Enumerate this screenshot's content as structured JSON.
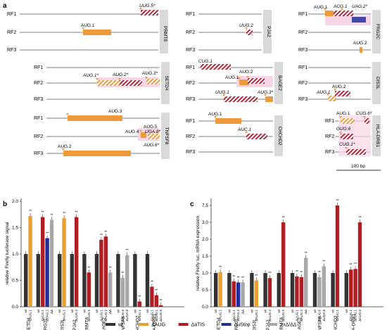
{
  "colors": {
    "wt": "#333333",
    "dAUG": "#e8a02e",
    "daTIS": "#b01e24",
    "duStop": "#1f2f9e",
    "dd": "#a8a8a8",
    "orf_orange": "#ee9a3a",
    "orf_red": "#b0283a",
    "hl_pink": "#f6d6e6",
    "gene_box": "#d9d9d9"
  },
  "panel_a": {
    "label": "a",
    "scale_bar": "100 bp",
    "genes": [
      {
        "name": "PRMT8",
        "frames": [
          "RF1",
          "RF2",
          "RF3"
        ],
        "tis": [
          "UUG.5*",
          "AUG.1"
        ]
      },
      {
        "name": "PJA2",
        "frames": [
          "RF1",
          "RF2",
          "RF3"
        ],
        "tis": [
          "UUG.2"
        ]
      },
      {
        "name": "FRG2C",
        "frames": [
          "RF1",
          "RF2",
          "RF3"
        ],
        "tis": [
          "AUG.1",
          "ACG.1",
          "UAG.2*",
          "AUG.2"
        ]
      },
      {
        "name": "SETD4",
        "frames": [
          "RF1",
          "RF2",
          "RF3"
        ],
        "tis": [
          "AUG.1*",
          "AUG.2*",
          "AUG.3*"
        ]
      },
      {
        "name": "BAGE2",
        "frames": [
          "RF1",
          "RF2",
          "RF3"
        ],
        "tis": [
          "CUG.1",
          "AUG.2",
          "AUG.1",
          "UUG.1",
          "AUG.3*"
        ]
      },
      {
        "name": "DIS3L",
        "frames": [
          "RF1",
          "RF2",
          "RF3"
        ],
        "tis": [
          "AUG.2",
          "AUG.1"
        ]
      },
      {
        "name": "TNFSF8",
        "frames": [
          "RF1",
          "RF2",
          "RF3"
        ],
        "tis": [
          "AUG.3",
          "AUG.5",
          "AUG.4",
          "UGA.8*",
          "AUG.6*",
          "AUG.2"
        ]
      },
      {
        "name": "CHCHD2",
        "frames": [
          "RF1",
          "RF2",
          "RF3"
        ],
        "tis": [
          "AUG.1",
          "AUC.1"
        ]
      },
      {
        "name": "HLA-DRB1",
        "frames": [
          "RF1",
          "RF2",
          "RF3"
        ],
        "tis": [
          "AUG.1",
          "CUG.6*",
          "GUG.6",
          "CUG.1*"
        ]
      }
    ]
  },
  "panel_b": {
    "label": "b",
    "ylabel": "relative Firefly luciferase signal",
    "ticks": [
      "0.0",
      "0.5",
      "1.0",
      "1.5",
      "2.0"
    ],
    "stars": "**"
  },
  "panel_c": {
    "label": "c",
    "ylabel": "relative Firefly luc. mRNA expression",
    "ticks_low": [
      "0.0",
      "0.5",
      "1.0",
      "1.5",
      "2.0"
    ],
    "ticks_high": [
      "3.0",
      "7.5"
    ],
    "stars": "**"
  },
  "legend": [
    {
      "key": "wt",
      "label": "wt"
    },
    {
      "key": "dAUG",
      "label": "ΔAUG"
    },
    {
      "key": "daTIS",
      "label": "ΔaTIS"
    },
    {
      "key": "duStop",
      "label": "ΔuStop"
    },
    {
      "key": "dd",
      "label": "2xΔ/ΔΔ"
    }
  ],
  "chart_data": [
    {
      "type": "bar",
      "panel": "b",
      "ylabel": "relative Firefly luciferase signal",
      "ylim": [
        0,
        2.0
      ],
      "groups": [
        {
          "gene": "SETD4",
          "bars": [
            {
              "cond": "wt",
              "label": "wt",
              "value": 1.0
            },
            {
              "cond": "dAUG",
              "label": "ΔAUG.1",
              "value": 1.72
            }
          ]
        },
        {
          "gene": "FRG2C",
          "bars": [
            {
              "cond": "wt",
              "label": "wt",
              "value": 1.0
            },
            {
              "cond": "daTIS",
              "label": "ΔACG.1",
              "value": 1.7
            },
            {
              "cond": "duStop",
              "label": "ΔUAG.2",
              "value": 1.3
            },
            {
              "cond": "dd",
              "label": "ΔΔ",
              "value": 1.65
            }
          ]
        },
        {
          "gene": "DIS3L",
          "bars": [
            {
              "cond": "wt",
              "label": "wt",
              "value": 1.0
            },
            {
              "cond": "dAUG",
              "label": "ΔAUG.1",
              "value": 1.68
            }
          ]
        },
        {
          "gene": "PJA2",
          "bars": [
            {
              "cond": "wt",
              "label": "wt",
              "value": 1.0
            },
            {
              "cond": "daTIS",
              "label": "ΔUUG.2",
              "value": 1.7
            }
          ]
        },
        {
          "gene": "PRMT8",
          "bars": [
            {
              "cond": "wt",
              "label": "wt",
              "value": 1.0
            },
            {
              "cond": "daTIS",
              "label": "ΔUUG.5",
              "value": 0.65
            }
          ]
        },
        {
          "gene": "BAGE2",
          "bars": [
            {
              "cond": "wt",
              "label": "wt",
              "value": 1.0
            },
            {
              "cond": "daTIS",
              "label": "ΔUUG.1",
              "value": 1.27
            },
            {
              "cond": "daTIS",
              "label": "ΔAUG.2",
              "value": 1.33
            },
            {
              "cond": "dd",
              "label": "ΔΔ",
              "value": 0.65
            }
          ]
        },
        {
          "gene": "TNFSF8",
          "bars": [
            {
              "cond": "wt",
              "label": "wt",
              "value": 1.0
            },
            {
              "cond": "dd",
              "label": "ΔAUG.6",
              "value": 0.55
            },
            {
              "cond": "dd",
              "label": "ΔUGA.8",
              "value": 0.98
            }
          ]
        },
        {
          "gene": "CHCHD2",
          "bars": [
            {
              "cond": "wt",
              "label": "wt",
              "value": 1.0
            },
            {
              "cond": "daTIS",
              "label": "ΔAUC.1",
              "value": 0.1
            }
          ]
        },
        {
          "gene": "HLA-DRB1",
          "bars": [
            {
              "cond": "wt",
              "label": "wt",
              "value": 1.0
            },
            {
              "cond": "daTIS",
              "label": "ΔAUG.1",
              "value": 0.38
            },
            {
              "cond": "daTIS",
              "label": "ΔCUG.1",
              "value": 0.22
            },
            {
              "cond": "daTIS",
              "label": "ΔGUG.6",
              "value": 0.03
            }
          ]
        }
      ]
    },
    {
      "type": "bar",
      "panel": "c",
      "ylabel": "relative Firefly luc. mRNA expression",
      "ylim": [
        0,
        7.5
      ],
      "axis_break": [
        2.0,
        3.0
      ],
      "groups": [
        {
          "gene": "SETD4",
          "bars": [
            {
              "cond": "wt",
              "label": "wt",
              "value": 1.0
            },
            {
              "cond": "dAUG",
              "label": "ΔAUG.1",
              "value": 1.03
            }
          ]
        },
        {
          "gene": "FRG2C",
          "bars": [
            {
              "cond": "wt",
              "label": "wt",
              "value": 1.0
            },
            {
              "cond": "daTIS",
              "label": "ΔACG.1",
              "value": 0.75
            },
            {
              "cond": "duStop",
              "label": "ΔUAG.2",
              "value": 0.72
            },
            {
              "cond": "dd",
              "label": "ΔΔ",
              "value": 0.72
            }
          ]
        },
        {
          "gene": "DIS3L",
          "bars": [
            {
              "cond": "wt",
              "label": "wt",
              "value": 1.0
            },
            {
              "cond": "dAUG",
              "label": "ΔAUG.1",
              "value": 0.78
            }
          ]
        },
        {
          "gene": "PJA2",
          "bars": [
            {
              "cond": "wt",
              "label": "wt",
              "value": 1.0
            },
            {
              "cond": "daTIS",
              "label": "ΔUUG.2",
              "value": 0.85
            }
          ]
        },
        {
          "gene": "PRMT8",
          "bars": [
            {
              "cond": "wt",
              "label": "wt",
              "value": 1.0
            },
            {
              "cond": "daTIS",
              "label": "ΔUUG.5",
              "value": 3.0
            }
          ]
        },
        {
          "gene": "BAGE2",
          "bars": [
            {
              "cond": "wt",
              "label": "wt",
              "value": 1.0
            },
            {
              "cond": "daTIS",
              "label": "ΔUUG.1",
              "value": 0.9
            },
            {
              "cond": "daTIS",
              "label": "ΔAUG.2",
              "value": 0.88
            },
            {
              "cond": "dd",
              "label": "ΔΔ",
              "value": 1.45
            }
          ]
        },
        {
          "gene": "TNFSF8",
          "bars": [
            {
              "cond": "wt",
              "label": "wt",
              "value": 1.0
            },
            {
              "cond": "dd",
              "label": "ΔAUG.6",
              "value": 0.88
            },
            {
              "cond": "dd",
              "label": "ΔUGA.8",
              "value": 1.2
            }
          ]
        },
        {
          "gene": "CHCHD2",
          "bars": [
            {
              "cond": "wt",
              "label": "wt",
              "value": 1.0
            },
            {
              "cond": "daTIS",
              "label": "ΔAUC.1",
              "value": 7.5
            }
          ]
        },
        {
          "gene": "HLA-DRB1",
          "bars": [
            {
              "cond": "wt",
              "label": "wt",
              "value": 1.0
            },
            {
              "cond": "daTIS",
              "label": "ΔAUG.1",
              "value": 1.1
            },
            {
              "cond": "daTIS",
              "label": "ΔCUG.1",
              "value": 1.12
            },
            {
              "cond": "daTIS",
              "label": "ΔCUG.6",
              "value": 3.0
            }
          ]
        }
      ]
    }
  ]
}
